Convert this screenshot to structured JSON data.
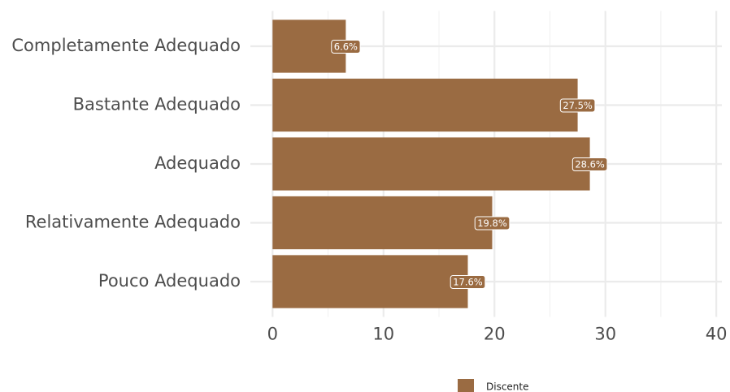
{
  "chart_data": {
    "type": "bar",
    "orientation": "horizontal",
    "categories": [
      "Completamente Adequado",
      "Bastante Adequado",
      "Adequado",
      "Relativamente Adequado",
      "Pouco Adequado"
    ],
    "series": [
      {
        "name": "Discente",
        "color": "#9a6b42",
        "values": [
          6.6,
          27.5,
          28.6,
          19.8,
          17.6
        ],
        "value_labels": [
          "6.6%",
          "27.5%",
          "28.6%",
          "19.8%",
          "17.6%"
        ]
      }
    ],
    "xlim": [
      -2,
      40.5
    ],
    "xticks": [
      0,
      10,
      20,
      30,
      40
    ],
    "grid": true,
    "legend": "bottom"
  }
}
